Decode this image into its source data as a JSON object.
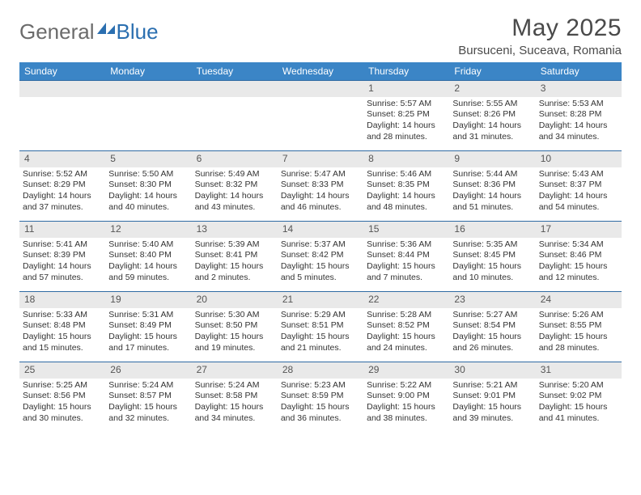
{
  "logo": {
    "general": "General",
    "blue": "Blue"
  },
  "header": {
    "title": "May 2025",
    "location": "Bursuceni, Suceava, Romania"
  },
  "colors": {
    "header_bar": "#3b85c6",
    "week_divider": "#2f6aa3",
    "daynum_bg": "#e9e9e9",
    "text": "#333333",
    "logo_gray": "#6b6b6b",
    "logo_blue": "#2b6fb0"
  },
  "days_of_week": [
    "Sunday",
    "Monday",
    "Tuesday",
    "Wednesday",
    "Thursday",
    "Friday",
    "Saturday"
  ],
  "weeks": [
    [
      null,
      null,
      null,
      null,
      {
        "n": "1",
        "sr": "5:57 AM",
        "ss": "8:25 PM",
        "dl1": "Daylight: 14 hours",
        "dl2": "and 28 minutes."
      },
      {
        "n": "2",
        "sr": "5:55 AM",
        "ss": "8:26 PM",
        "dl1": "Daylight: 14 hours",
        "dl2": "and 31 minutes."
      },
      {
        "n": "3",
        "sr": "5:53 AM",
        "ss": "8:28 PM",
        "dl1": "Daylight: 14 hours",
        "dl2": "and 34 minutes."
      }
    ],
    [
      {
        "n": "4",
        "sr": "5:52 AM",
        "ss": "8:29 PM",
        "dl1": "Daylight: 14 hours",
        "dl2": "and 37 minutes."
      },
      {
        "n": "5",
        "sr": "5:50 AM",
        "ss": "8:30 PM",
        "dl1": "Daylight: 14 hours",
        "dl2": "and 40 minutes."
      },
      {
        "n": "6",
        "sr": "5:49 AM",
        "ss": "8:32 PM",
        "dl1": "Daylight: 14 hours",
        "dl2": "and 43 minutes."
      },
      {
        "n": "7",
        "sr": "5:47 AM",
        "ss": "8:33 PM",
        "dl1": "Daylight: 14 hours",
        "dl2": "and 46 minutes."
      },
      {
        "n": "8",
        "sr": "5:46 AM",
        "ss": "8:35 PM",
        "dl1": "Daylight: 14 hours",
        "dl2": "and 48 minutes."
      },
      {
        "n": "9",
        "sr": "5:44 AM",
        "ss": "8:36 PM",
        "dl1": "Daylight: 14 hours",
        "dl2": "and 51 minutes."
      },
      {
        "n": "10",
        "sr": "5:43 AM",
        "ss": "8:37 PM",
        "dl1": "Daylight: 14 hours",
        "dl2": "and 54 minutes."
      }
    ],
    [
      {
        "n": "11",
        "sr": "5:41 AM",
        "ss": "8:39 PM",
        "dl1": "Daylight: 14 hours",
        "dl2": "and 57 minutes."
      },
      {
        "n": "12",
        "sr": "5:40 AM",
        "ss": "8:40 PM",
        "dl1": "Daylight: 14 hours",
        "dl2": "and 59 minutes."
      },
      {
        "n": "13",
        "sr": "5:39 AM",
        "ss": "8:41 PM",
        "dl1": "Daylight: 15 hours",
        "dl2": "and 2 minutes."
      },
      {
        "n": "14",
        "sr": "5:37 AM",
        "ss": "8:42 PM",
        "dl1": "Daylight: 15 hours",
        "dl2": "and 5 minutes."
      },
      {
        "n": "15",
        "sr": "5:36 AM",
        "ss": "8:44 PM",
        "dl1": "Daylight: 15 hours",
        "dl2": "and 7 minutes."
      },
      {
        "n": "16",
        "sr": "5:35 AM",
        "ss": "8:45 PM",
        "dl1": "Daylight: 15 hours",
        "dl2": "and 10 minutes."
      },
      {
        "n": "17",
        "sr": "5:34 AM",
        "ss": "8:46 PM",
        "dl1": "Daylight: 15 hours",
        "dl2": "and 12 minutes."
      }
    ],
    [
      {
        "n": "18",
        "sr": "5:33 AM",
        "ss": "8:48 PM",
        "dl1": "Daylight: 15 hours",
        "dl2": "and 15 minutes."
      },
      {
        "n": "19",
        "sr": "5:31 AM",
        "ss": "8:49 PM",
        "dl1": "Daylight: 15 hours",
        "dl2": "and 17 minutes."
      },
      {
        "n": "20",
        "sr": "5:30 AM",
        "ss": "8:50 PM",
        "dl1": "Daylight: 15 hours",
        "dl2": "and 19 minutes."
      },
      {
        "n": "21",
        "sr": "5:29 AM",
        "ss": "8:51 PM",
        "dl1": "Daylight: 15 hours",
        "dl2": "and 21 minutes."
      },
      {
        "n": "22",
        "sr": "5:28 AM",
        "ss": "8:52 PM",
        "dl1": "Daylight: 15 hours",
        "dl2": "and 24 minutes."
      },
      {
        "n": "23",
        "sr": "5:27 AM",
        "ss": "8:54 PM",
        "dl1": "Daylight: 15 hours",
        "dl2": "and 26 minutes."
      },
      {
        "n": "24",
        "sr": "5:26 AM",
        "ss": "8:55 PM",
        "dl1": "Daylight: 15 hours",
        "dl2": "and 28 minutes."
      }
    ],
    [
      {
        "n": "25",
        "sr": "5:25 AM",
        "ss": "8:56 PM",
        "dl1": "Daylight: 15 hours",
        "dl2": "and 30 minutes."
      },
      {
        "n": "26",
        "sr": "5:24 AM",
        "ss": "8:57 PM",
        "dl1": "Daylight: 15 hours",
        "dl2": "and 32 minutes."
      },
      {
        "n": "27",
        "sr": "5:24 AM",
        "ss": "8:58 PM",
        "dl1": "Daylight: 15 hours",
        "dl2": "and 34 minutes."
      },
      {
        "n": "28",
        "sr": "5:23 AM",
        "ss": "8:59 PM",
        "dl1": "Daylight: 15 hours",
        "dl2": "and 36 minutes."
      },
      {
        "n": "29",
        "sr": "5:22 AM",
        "ss": "9:00 PM",
        "dl1": "Daylight: 15 hours",
        "dl2": "and 38 minutes."
      },
      {
        "n": "30",
        "sr": "5:21 AM",
        "ss": "9:01 PM",
        "dl1": "Daylight: 15 hours",
        "dl2": "and 39 minutes."
      },
      {
        "n": "31",
        "sr": "5:20 AM",
        "ss": "9:02 PM",
        "dl1": "Daylight: 15 hours",
        "dl2": "and 41 minutes."
      }
    ]
  ]
}
